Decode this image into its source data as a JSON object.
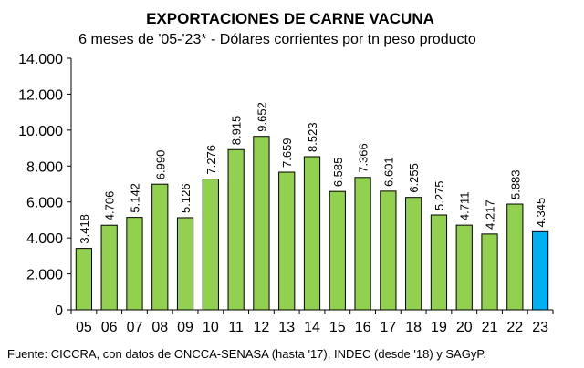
{
  "chart_data": {
    "type": "bar",
    "title": "EXPORTACIONES DE CARNE VACUNA",
    "subtitle": "6 meses de '05-'23* - Dólares corrientes por tn peso producto",
    "source": "Fuente: CICCRA, con datos de ONCCA-SENASA (hasta '17), INDEC (desde '18) y SAGyP.",
    "categories": [
      "05",
      "06",
      "07",
      "08",
      "09",
      "10",
      "11",
      "12",
      "13",
      "14",
      "15",
      "16",
      "17",
      "18",
      "19",
      "20",
      "21",
      "22",
      "23"
    ],
    "values": [
      3418,
      4706,
      5142,
      6990,
      5126,
      7276,
      8915,
      9652,
      7659,
      8523,
      6585,
      7366,
      6601,
      6255,
      5275,
      4711,
      4217,
      5883,
      4345
    ],
    "value_labels": [
      "3.418",
      "4.706",
      "5.142",
      "6.990",
      "5.126",
      "7.276",
      "8.915",
      "9.652",
      "7.659",
      "8.523",
      "6.585",
      "7.366",
      "6.601",
      "6.255",
      "5.275",
      "4.711",
      "4.217",
      "5.883",
      "4.345"
    ],
    "yticks": [
      "0",
      "2.000",
      "4.000",
      "6.000",
      "8.000",
      "10.000",
      "12.000",
      "14.000"
    ],
    "ylim": [
      0,
      14000
    ],
    "grid": false,
    "colors": {
      "bar": "#92D050",
      "highlight": "#00B0F0",
      "bar_stroke": "#000000"
    },
    "highlight_index": 18
  }
}
